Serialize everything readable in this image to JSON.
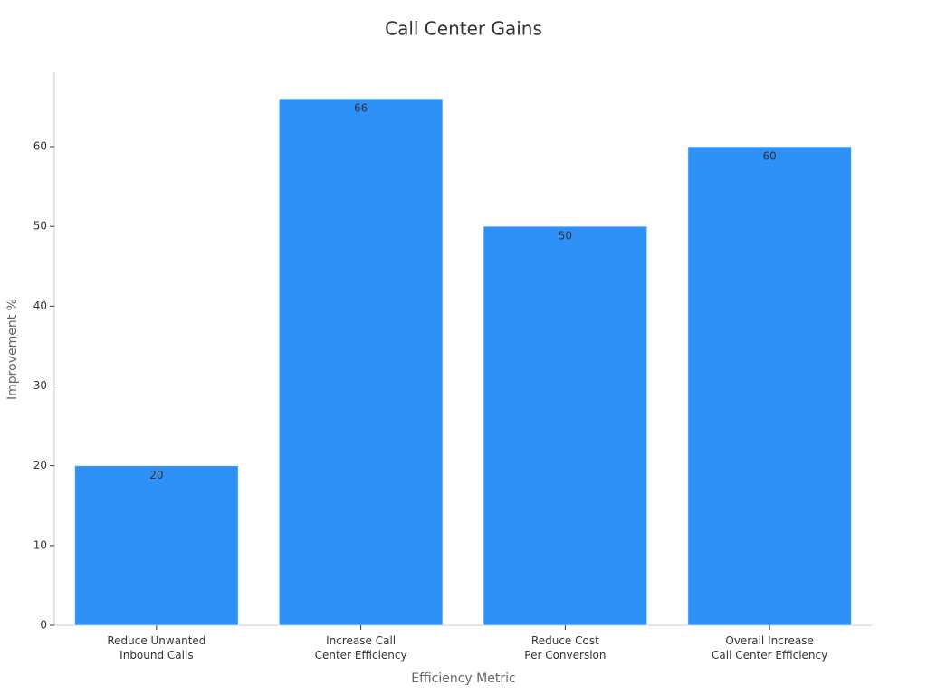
{
  "chart_data": {
    "type": "bar",
    "title": "Call Center Gains",
    "x_label": "Efficiency Metric",
    "y_label": "Improvement %",
    "categories": [
      "Reduce Unwanted\nInbound Calls",
      "Increase Call\nCenter Efficiency",
      "Reduce Cost\nPer Conversion",
      "Overall Increase\nCall Center Efficiency"
    ],
    "values": [
      20,
      66,
      50,
      60
    ],
    "color": "#2e91f8",
    "ylim": [
      0,
      69.3
    ],
    "yticks": [
      0,
      10,
      20,
      30,
      40,
      50,
      60
    ],
    "grid": false
  }
}
